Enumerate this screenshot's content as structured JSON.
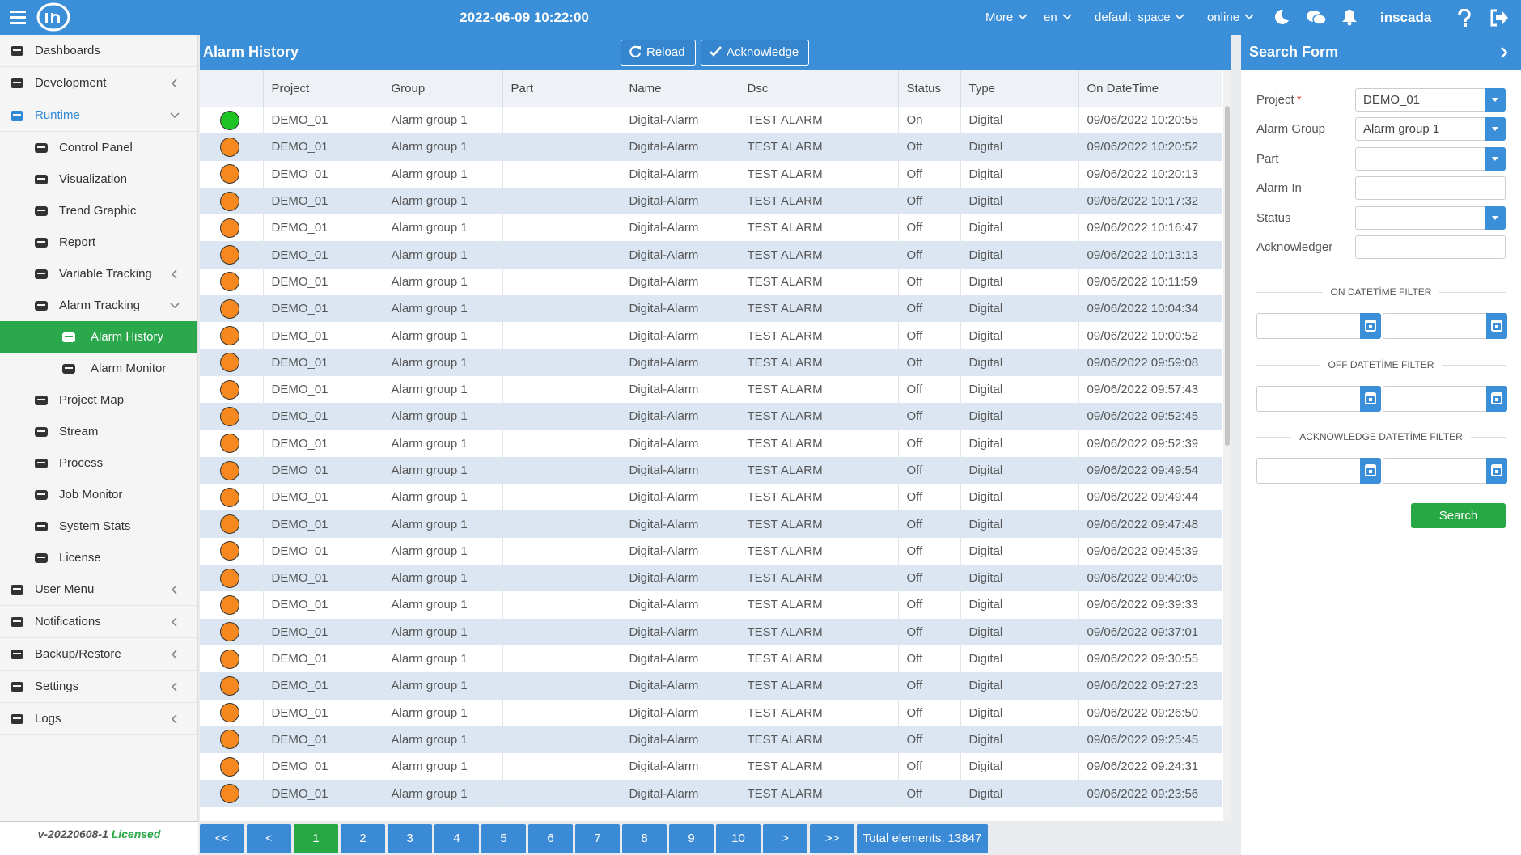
{
  "topbar": {
    "datetime": "2022-06-09 10:22:00",
    "menus": [
      "More",
      "en",
      "default_space",
      "online"
    ],
    "user": "inscada"
  },
  "sidebar": {
    "items": [
      {
        "label": "Dashboards"
      },
      {
        "label": "Development",
        "arrow": "left"
      },
      {
        "label": "Runtime",
        "arrow": "down",
        "state": "open"
      },
      {
        "label": "Control Panel",
        "level": 1
      },
      {
        "label": "Visualization",
        "level": 1
      },
      {
        "label": "Trend Graphic",
        "level": 1
      },
      {
        "label": "Report",
        "level": 1
      },
      {
        "label": "Variable Tracking",
        "level": 1,
        "arrow": "left"
      },
      {
        "label": "Alarm Tracking",
        "level": 1,
        "arrow": "down"
      },
      {
        "label": "Alarm History",
        "level": 2,
        "state": "active"
      },
      {
        "label": "Alarm Monitor",
        "level": 2
      },
      {
        "label": "Project Map",
        "level": 1
      },
      {
        "label": "Stream",
        "level": 1
      },
      {
        "label": "Process",
        "level": 1
      },
      {
        "label": "Job Monitor",
        "level": 1
      },
      {
        "label": "System Stats",
        "level": 1
      },
      {
        "label": "License",
        "level": 1
      },
      {
        "label": "User Menu",
        "arrow": "left"
      },
      {
        "label": "Notifications",
        "arrow": "left"
      },
      {
        "label": "Backup/Restore",
        "arrow": "left"
      },
      {
        "label": "Settings",
        "arrow": "left"
      },
      {
        "label": "Logs",
        "arrow": "left"
      }
    ],
    "version": "v-20220608-1",
    "license": "Licensed"
  },
  "panel": {
    "title": "Alarm History",
    "buttons": [
      "Reload",
      "Acknowledge"
    ]
  },
  "table": {
    "columns": [
      "Project",
      "Group",
      "Part",
      "Name",
      "Dsc",
      "Status",
      "Type",
      "On DateTime"
    ],
    "rows": [
      {
        "indicator": "#1fc324",
        "project": "DEMO_01",
        "group": "Alarm group 1",
        "name": "Digital-Alarm",
        "dsc": "TEST ALARM",
        "status": "On",
        "type": "Digital",
        "on_datetime": "09/06/2022 10:20:55"
      },
      {
        "indicator": "#f5891f",
        "project": "DEMO_01",
        "group": "Alarm group 1",
        "name": "Digital-Alarm",
        "dsc": "TEST ALARM",
        "status": "Off",
        "type": "Digital",
        "on_datetime": "09/06/2022 10:20:52"
      },
      {
        "indicator": "#f5891f",
        "project": "DEMO_01",
        "group": "Alarm group 1",
        "name": "Digital-Alarm",
        "dsc": "TEST ALARM",
        "status": "Off",
        "type": "Digital",
        "on_datetime": "09/06/2022 10:20:13"
      },
      {
        "indicator": "#f5891f",
        "project": "DEMO_01",
        "group": "Alarm group 1",
        "name": "Digital-Alarm",
        "dsc": "TEST ALARM",
        "status": "Off",
        "type": "Digital",
        "on_datetime": "09/06/2022 10:17:32"
      },
      {
        "indicator": "#f5891f",
        "project": "DEMO_01",
        "group": "Alarm group 1",
        "name": "Digital-Alarm",
        "dsc": "TEST ALARM",
        "status": "Off",
        "type": "Digital",
        "on_datetime": "09/06/2022 10:16:47"
      },
      {
        "indicator": "#f5891f",
        "project": "DEMO_01",
        "group": "Alarm group 1",
        "name": "Digital-Alarm",
        "dsc": "TEST ALARM",
        "status": "Off",
        "type": "Digital",
        "on_datetime": "09/06/2022 10:13:13"
      },
      {
        "indicator": "#f5891f",
        "project": "DEMO_01",
        "group": "Alarm group 1",
        "name": "Digital-Alarm",
        "dsc": "TEST ALARM",
        "status": "Off",
        "type": "Digital",
        "on_datetime": "09/06/2022 10:11:59"
      },
      {
        "indicator": "#f5891f",
        "project": "DEMO_01",
        "group": "Alarm group 1",
        "name": "Digital-Alarm",
        "dsc": "TEST ALARM",
        "status": "Off",
        "type": "Digital",
        "on_datetime": "09/06/2022 10:04:34"
      },
      {
        "indicator": "#f5891f",
        "project": "DEMO_01",
        "group": "Alarm group 1",
        "name": "Digital-Alarm",
        "dsc": "TEST ALARM",
        "status": "Off",
        "type": "Digital",
        "on_datetime": "09/06/2022 10:00:52"
      },
      {
        "indicator": "#f5891f",
        "project": "DEMO_01",
        "group": "Alarm group 1",
        "name": "Digital-Alarm",
        "dsc": "TEST ALARM",
        "status": "Off",
        "type": "Digital",
        "on_datetime": "09/06/2022 09:59:08"
      },
      {
        "indicator": "#f5891f",
        "project": "DEMO_01",
        "group": "Alarm group 1",
        "name": "Digital-Alarm",
        "dsc": "TEST ALARM",
        "status": "Off",
        "type": "Digital",
        "on_datetime": "09/06/2022 09:57:43"
      },
      {
        "indicator": "#f5891f",
        "project": "DEMO_01",
        "group": "Alarm group 1",
        "name": "Digital-Alarm",
        "dsc": "TEST ALARM",
        "status": "Off",
        "type": "Digital",
        "on_datetime": "09/06/2022 09:52:45"
      },
      {
        "indicator": "#f5891f",
        "project": "DEMO_01",
        "group": "Alarm group 1",
        "name": "Digital-Alarm",
        "dsc": "TEST ALARM",
        "status": "Off",
        "type": "Digital",
        "on_datetime": "09/06/2022 09:52:39"
      },
      {
        "indicator": "#f5891f",
        "project": "DEMO_01",
        "group": "Alarm group 1",
        "name": "Digital-Alarm",
        "dsc": "TEST ALARM",
        "status": "Off",
        "type": "Digital",
        "on_datetime": "09/06/2022 09:49:54"
      },
      {
        "indicator": "#f5891f",
        "project": "DEMO_01",
        "group": "Alarm group 1",
        "name": "Digital-Alarm",
        "dsc": "TEST ALARM",
        "status": "Off",
        "type": "Digital",
        "on_datetime": "09/06/2022 09:49:44"
      },
      {
        "indicator": "#f5891f",
        "project": "DEMO_01",
        "group": "Alarm group 1",
        "name": "Digital-Alarm",
        "dsc": "TEST ALARM",
        "status": "Off",
        "type": "Digital",
        "on_datetime": "09/06/2022 09:47:48"
      },
      {
        "indicator": "#f5891f",
        "project": "DEMO_01",
        "group": "Alarm group 1",
        "name": "Digital-Alarm",
        "dsc": "TEST ALARM",
        "status": "Off",
        "type": "Digital",
        "on_datetime": "09/06/2022 09:45:39"
      },
      {
        "indicator": "#f5891f",
        "project": "DEMO_01",
        "group": "Alarm group 1",
        "name": "Digital-Alarm",
        "dsc": "TEST ALARM",
        "status": "Off",
        "type": "Digital",
        "on_datetime": "09/06/2022 09:40:05"
      },
      {
        "indicator": "#f5891f",
        "project": "DEMO_01",
        "group": "Alarm group 1",
        "name": "Digital-Alarm",
        "dsc": "TEST ALARM",
        "status": "Off",
        "type": "Digital",
        "on_datetime": "09/06/2022 09:39:33"
      },
      {
        "indicator": "#f5891f",
        "project": "DEMO_01",
        "group": "Alarm group 1",
        "name": "Digital-Alarm",
        "dsc": "TEST ALARM",
        "status": "Off",
        "type": "Digital",
        "on_datetime": "09/06/2022 09:37:01"
      },
      {
        "indicator": "#f5891f",
        "project": "DEMO_01",
        "group": "Alarm group 1",
        "name": "Digital-Alarm",
        "dsc": "TEST ALARM",
        "status": "Off",
        "type": "Digital",
        "on_datetime": "09/06/2022 09:30:55"
      },
      {
        "indicator": "#f5891f",
        "project": "DEMO_01",
        "group": "Alarm group 1",
        "name": "Digital-Alarm",
        "dsc": "TEST ALARM",
        "status": "Off",
        "type": "Digital",
        "on_datetime": "09/06/2022 09:27:23"
      },
      {
        "indicator": "#f5891f",
        "project": "DEMO_01",
        "group": "Alarm group 1",
        "name": "Digital-Alarm",
        "dsc": "TEST ALARM",
        "status": "Off",
        "type": "Digital",
        "on_datetime": "09/06/2022 09:26:50"
      },
      {
        "indicator": "#f5891f",
        "project": "DEMO_01",
        "group": "Alarm group 1",
        "name": "Digital-Alarm",
        "dsc": "TEST ALARM",
        "status": "Off",
        "type": "Digital",
        "on_datetime": "09/06/2022 09:25:45"
      },
      {
        "indicator": "#f5891f",
        "project": "DEMO_01",
        "group": "Alarm group 1",
        "name": "Digital-Alarm",
        "dsc": "TEST ALARM",
        "status": "Off",
        "type": "Digital",
        "on_datetime": "09/06/2022 09:24:31"
      },
      {
        "indicator": "#f5891f",
        "project": "DEMO_01",
        "group": "Alarm group 1",
        "name": "Digital-Alarm",
        "dsc": "TEST ALARM",
        "status": "Off",
        "type": "Digital",
        "on_datetime": "09/06/2022 09:23:56"
      }
    ]
  },
  "pagination": {
    "pages": [
      "<<",
      "<",
      "1",
      "2",
      "3",
      "4",
      "5",
      "6",
      "7",
      "8",
      "9",
      "10",
      ">",
      ">>"
    ],
    "active_page": "1",
    "total": "Total elements: 13847"
  },
  "search_form": {
    "title": "Search Form",
    "required_mark": "*",
    "fields": [
      {
        "label": "Project",
        "required": true,
        "value": "DEMO_01",
        "kind": "select"
      },
      {
        "label": "Alarm Group",
        "value": "Alarm group 1",
        "kind": "select"
      },
      {
        "label": "Part",
        "kind": "select"
      },
      {
        "label": "Alarm In",
        "kind": "text"
      },
      {
        "label": "Status",
        "kind": "select"
      },
      {
        "label": "Acknowledger",
        "kind": "text"
      }
    ],
    "filters": [
      "ON DATETİME FILTER",
      "OFF DATETİME FILTER",
      "ACKNOWLEDGE DATETİME FILTER"
    ],
    "button": "Search"
  }
}
